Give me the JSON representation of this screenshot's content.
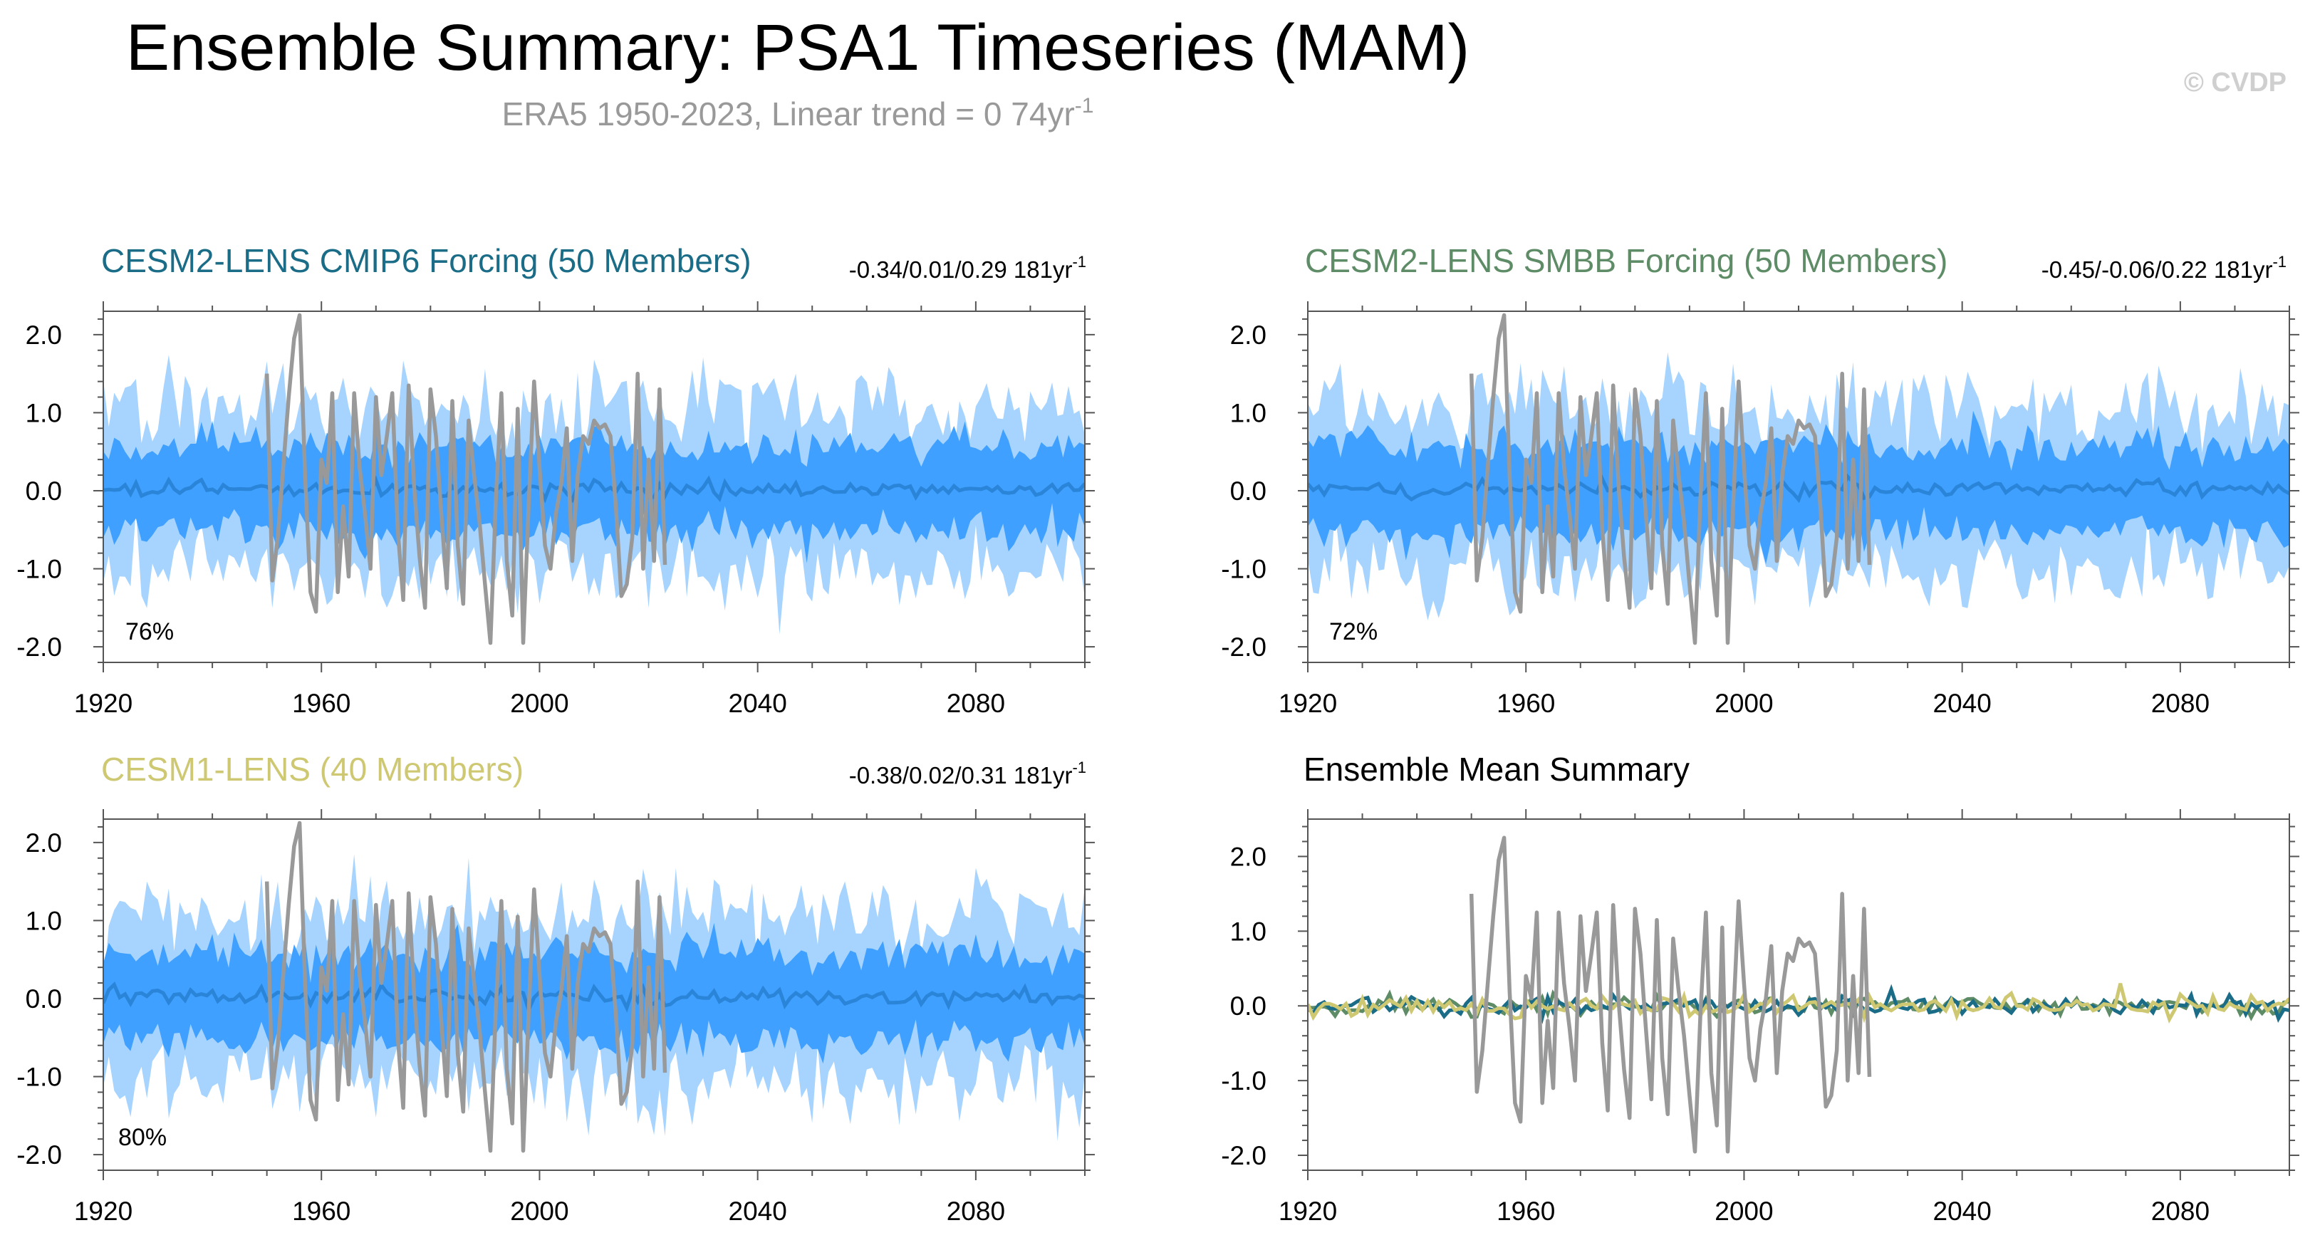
{
  "title": "Ensemble Summary: PSA1 Timeseries (MAM)",
  "subtitle": {
    "text": "ERA5 1950-2023, Linear trend = 0 74yr",
    "sup": "-1"
  },
  "watermark": "© CVDP",
  "colors": {
    "outer_band": "#a6d4ff",
    "inner_band": "#3fa0ff",
    "ens_mean_line": "#2a84d8",
    "observations": "#999999",
    "cesm2_cmip6": "#1a6c87",
    "cesm2_smbb": "#5e8c66",
    "cesm1": "#cfc873",
    "axis": "#555555"
  },
  "chart_data": [
    {
      "id": "cesm2-cmip6",
      "type": "area",
      "title": "CESM2-LENS CMIP6 Forcing (50 Members)",
      "title_color": "#1a6c87",
      "stats": {
        "text": "-0.34/0.01/0.29 181yr",
        "sup": "-1"
      },
      "percent_label": "76%",
      "xlim": [
        1920,
        2100
      ],
      "ylim": [
        -2.2,
        2.3
      ],
      "xticks": [
        1920,
        1960,
        2000,
        2040,
        2080
      ],
      "xtick_labels": [
        "1920",
        "1960",
        "2000",
        "2040",
        "2080"
      ],
      "yticks": [
        2.0,
        1.0,
        0.0,
        -1.0,
        -2.0
      ],
      "ytick_labels": [
        "2.0",
        "1.0",
        "0.0",
        "-1.0",
        "-2.0"
      ],
      "seed": 11,
      "series": [
        "Ensemble 10-90% range",
        "Ensemble 25-75% range",
        "Ensemble mean",
        "ERA5 observations"
      ]
    },
    {
      "id": "cesm2-smbb",
      "type": "area",
      "title": "CESM2-LENS SMBB Forcing (50 Members)",
      "title_color": "#5e8c66",
      "stats": {
        "text": "-0.45/-0.06/0.22 181yr",
        "sup": "-1"
      },
      "percent_label": "72%",
      "xlim": [
        1920,
        2100
      ],
      "ylim": [
        -2.2,
        2.3
      ],
      "xticks": [
        1920,
        1960,
        2000,
        2040,
        2080
      ],
      "xtick_labels": [
        "1920",
        "1960",
        "2000",
        "2040",
        "2080"
      ],
      "yticks": [
        2.0,
        1.0,
        0.0,
        -1.0,
        -2.0
      ],
      "ytick_labels": [
        "2.0",
        "1.0",
        "0.0",
        "-1.0",
        "-2.0"
      ],
      "seed": 29,
      "series": [
        "Ensemble 10-90% range",
        "Ensemble 25-75% range",
        "Ensemble mean",
        "ERA5 observations"
      ]
    },
    {
      "id": "cesm1",
      "type": "area",
      "title": "CESM1-LENS (40 Members)",
      "title_color": "#cfc873",
      "stats": {
        "text": "-0.38/0.02/0.31 181yr",
        "sup": "-1"
      },
      "percent_label": "80%",
      "xlim": [
        1920,
        2100
      ],
      "ylim": [
        -2.2,
        2.3
      ],
      "xticks": [
        1920,
        1960,
        2000,
        2040,
        2080
      ],
      "xtick_labels": [
        "1920",
        "1960",
        "2000",
        "2040",
        "2080"
      ],
      "yticks": [
        2.0,
        1.0,
        0.0,
        -1.0,
        -2.0
      ],
      "ytick_labels": [
        "2.0",
        "1.0",
        "0.0",
        "-1.0",
        "-2.0"
      ],
      "seed": 47,
      "series": [
        "Ensemble 10-90% range",
        "Ensemble 25-75% range",
        "Ensemble mean",
        "ERA5 observations"
      ]
    },
    {
      "id": "ens-mean-summary",
      "type": "line",
      "title": "Ensemble Mean Summary",
      "title_color": "#000000",
      "xlim": [
        1920,
        2100
      ],
      "ylim": [
        -2.2,
        2.5
      ],
      "xticks": [
        1920,
        1960,
        2000,
        2040,
        2080
      ],
      "xtick_labels": [
        "1920",
        "1960",
        "2000",
        "2040",
        "2080"
      ],
      "yticks": [
        2.0,
        1.0,
        0.0,
        -1.0,
        -2.0
      ],
      "ytick_labels": [
        "2.0",
        "1.0",
        "0.0",
        "-1.0",
        "-2.0"
      ],
      "seed": 71,
      "series": [
        "ERA5 observations",
        "CESM2-LENS CMIP6 Forcing",
        "CESM2-LENS SMBB Forcing",
        "CESM1-LENS"
      ]
    }
  ],
  "observations": {
    "name": "ERA5",
    "years": [
      1950,
      1951,
      1952,
      1953,
      1954,
      1955,
      1956,
      1957,
      1958,
      1959,
      1960,
      1961,
      1962,
      1963,
      1964,
      1965,
      1966,
      1967,
      1968,
      1969,
      1970,
      1971,
      1972,
      1973,
      1974,
      1975,
      1976,
      1977,
      1978,
      1979,
      1980,
      1981,
      1982,
      1983,
      1984,
      1985,
      1986,
      1987,
      1988,
      1989,
      1990,
      1991,
      1992,
      1993,
      1994,
      1995,
      1996,
      1997,
      1998,
      1999,
      2000,
      2001,
      2002,
      2003,
      2004,
      2005,
      2006,
      2007,
      2008,
      2009,
      2010,
      2011,
      2012,
      2013,
      2014,
      2015,
      2016,
      2017,
      2018,
      2019,
      2020,
      2021,
      2022,
      2023
    ],
    "values": [
      1.5,
      -1.15,
      -0.6,
      0.3,
      1.2,
      1.95,
      2.25,
      0.2,
      -1.3,
      -1.55,
      0.4,
      0.1,
      1.25,
      -1.3,
      -0.2,
      -1.1,
      1.25,
      0.3,
      -0.3,
      -1.0,
      1.2,
      0.2,
      0.7,
      1.25,
      -0.5,
      -1.4,
      1.35,
      0.05,
      -0.85,
      -1.5,
      1.3,
      0.7,
      -0.3,
      -1.25,
      1.15,
      -0.7,
      -1.45,
      0.9,
      0.2,
      -0.4,
      -1.2,
      -1.95,
      -0.1,
      1.25,
      -0.9,
      -1.6,
      1.05,
      -1.95,
      -0.2,
      1.4,
      0.3,
      -0.7,
      -1.0,
      -0.3,
      0.1,
      0.8,
      -0.9,
      0.2,
      0.7,
      0.6,
      0.9,
      0.8,
      0.85,
      0.7,
      -0.2,
      -1.35,
      -1.2,
      -0.6,
      1.5,
      -1.0,
      0.4,
      -0.9,
      1.3,
      -0.95
    ]
  }
}
